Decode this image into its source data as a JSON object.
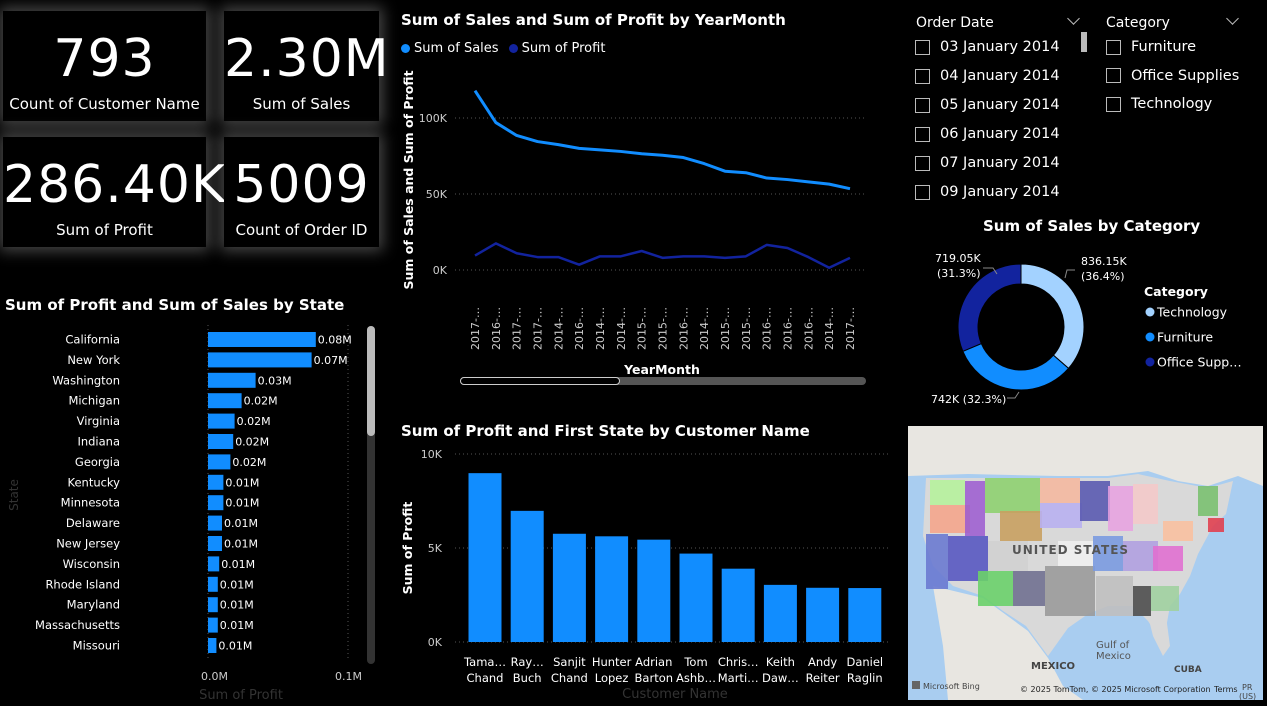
{
  "kpis": [
    {
      "value": "793",
      "label": "Count of Customer Name"
    },
    {
      "value": "2.30M",
      "label": "Sum of Sales"
    },
    {
      "value": "286.40K",
      "label": "Sum of Profit"
    },
    {
      "value": "5009",
      "label": "Count of Order ID"
    }
  ],
  "slicers": {
    "order_date": {
      "title": "Order Date",
      "items": [
        "03 January 2014",
        "04 January 2014",
        "05 January 2014",
        "06 January 2014",
        "07 January 2014",
        "09 January 2014"
      ]
    },
    "category": {
      "title": "Category",
      "items": [
        "Furniture",
        "Office Supplies",
        "Technology"
      ]
    }
  },
  "colors": {
    "light_blue": "#118dff",
    "dark_blue": "#12239e",
    "pale_blue": "#a3d2ff",
    "grid": "#555555",
    "axis_text": "#cccccc"
  },
  "map": {
    "country_label": "UNITED STATES",
    "gulf_label_1": "Gulf of",
    "gulf_label_2": "Mexico",
    "mexico_label": "MEXICO",
    "cuba_label": "CUBA",
    "pr_label_1": "PR",
    "pr_label_2": "(US)",
    "terms": "Terms",
    "copyright": "© 2025 TomTom, © 2025 Microsoft Corporation",
    "provider": "Microsoft Bing"
  },
  "chart_data": [
    {
      "type": "line",
      "title": "Sum of Sales and Sum of Profit by YearMonth",
      "xlabel": "YearMonth",
      "ylabel": "Sum of Sales and Sum of Profit",
      "x": [
        "2017-…",
        "2016-…",
        "2017-…",
        "2017-…",
        "2014-…",
        "2016-…",
        "2014-…",
        "2014-…",
        "2015-…",
        "2015-…",
        "2016-…",
        "2014-…",
        "2015-…",
        "2015-…",
        "2016-…",
        "2016-…",
        "2016-…",
        "2014-…",
        "2017-…"
      ],
      "series": [
        {
          "name": "Sum of Sales",
          "color": "#118dff",
          "values": [
            118000,
            97000,
            88500,
            84500,
            82500,
            80000,
            79000,
            78000,
            76500,
            75500,
            74000,
            70000,
            65000,
            64000,
            60500,
            59500,
            58000,
            56500,
            53500
          ]
        },
        {
          "name": "Sum of Profit",
          "color": "#12239e",
          "values": [
            9500,
            17500,
            11000,
            8500,
            8500,
            3500,
            9000,
            9000,
            12500,
            8000,
            9000,
            9000,
            8000,
            9000,
            16500,
            14500,
            8500,
            1500,
            8000
          ]
        }
      ],
      "yticks": [
        "100K",
        "50K",
        "0K"
      ],
      "ytick_values": [
        100000,
        50000,
        0
      ],
      "ylim": [
        0,
        125000
      ],
      "legend": "top-left"
    },
    {
      "type": "bar",
      "orientation": "horizontal",
      "title": "Sum of Profit and Sum of Sales by State",
      "xlabel": "Sum of Profit",
      "ylabel": "State",
      "categories": [
        "California",
        "New York",
        "Washington",
        "Michigan",
        "Virginia",
        "Indiana",
        "Georgia",
        "Kentucky",
        "Minnesota",
        "Delaware",
        "New Jersey",
        "Wisconsin",
        "Rhode Island",
        "Maryland",
        "Massachusetts",
        "Missouri"
      ],
      "values": [
        0.077,
        0.074,
        0.034,
        0.024,
        0.019,
        0.018,
        0.016,
        0.011,
        0.011,
        0.01,
        0.01,
        0.008,
        0.007,
        0.007,
        0.007,
        0.006
      ],
      "value_labels": [
        "0.08M",
        "0.07M",
        "0.03M",
        "0.02M",
        "0.02M",
        "0.02M",
        "0.02M",
        "0.01M",
        "0.01M",
        "0.01M",
        "0.01M",
        "0.01M",
        "0.01M",
        "0.01M",
        "0.01M",
        "0.01M"
      ],
      "xticks": [
        "0.0M",
        "0.1M"
      ],
      "xlim": [
        0,
        0.1
      ]
    },
    {
      "type": "bar",
      "title": "Sum of Profit and First State by Customer Name",
      "xlabel": "Customer Name",
      "ylabel": "Sum of Profit",
      "categories": [
        [
          "Tama…",
          "Chand"
        ],
        [
          "Ray…",
          "Buch"
        ],
        [
          "Sanjit",
          "Chand"
        ],
        [
          "Hunter",
          "Lopez"
        ],
        [
          "Adrian",
          "Barton"
        ],
        [
          "Tom",
          "Ashb…"
        ],
        [
          "Chris…",
          "Marti…"
        ],
        [
          "Keith",
          "Daw…"
        ],
        [
          "Andy",
          "Reiter"
        ],
        [
          "Daniel",
          "Raglin"
        ]
      ],
      "values": [
        8981,
        6976,
        5757,
        5622,
        5444,
        4703,
        3900,
        3039,
        2884,
        2869
      ],
      "yticks": [
        "10K",
        "5K",
        "0K"
      ],
      "ytick_values": [
        10000,
        5000,
        0
      ],
      "ylim": [
        0,
        10000
      ]
    },
    {
      "type": "pie",
      "style": "donut",
      "title": "Sum of Sales by Category",
      "legend_title": "Category",
      "legend": "right",
      "slices": [
        {
          "name": "Technology",
          "value": 836.15,
          "label": "836.15K",
          "pct": "(36.4%)",
          "color": "#a3d2ff"
        },
        {
          "name": "Furniture",
          "value": 742,
          "label": "742K (32.3%)",
          "color": "#118dff"
        },
        {
          "name": "Office Supplies",
          "legend_text": "Office Supp…",
          "value": 719.05,
          "label": "719.05K",
          "pct": "(31.3%)",
          "color": "#12239e"
        }
      ]
    }
  ]
}
